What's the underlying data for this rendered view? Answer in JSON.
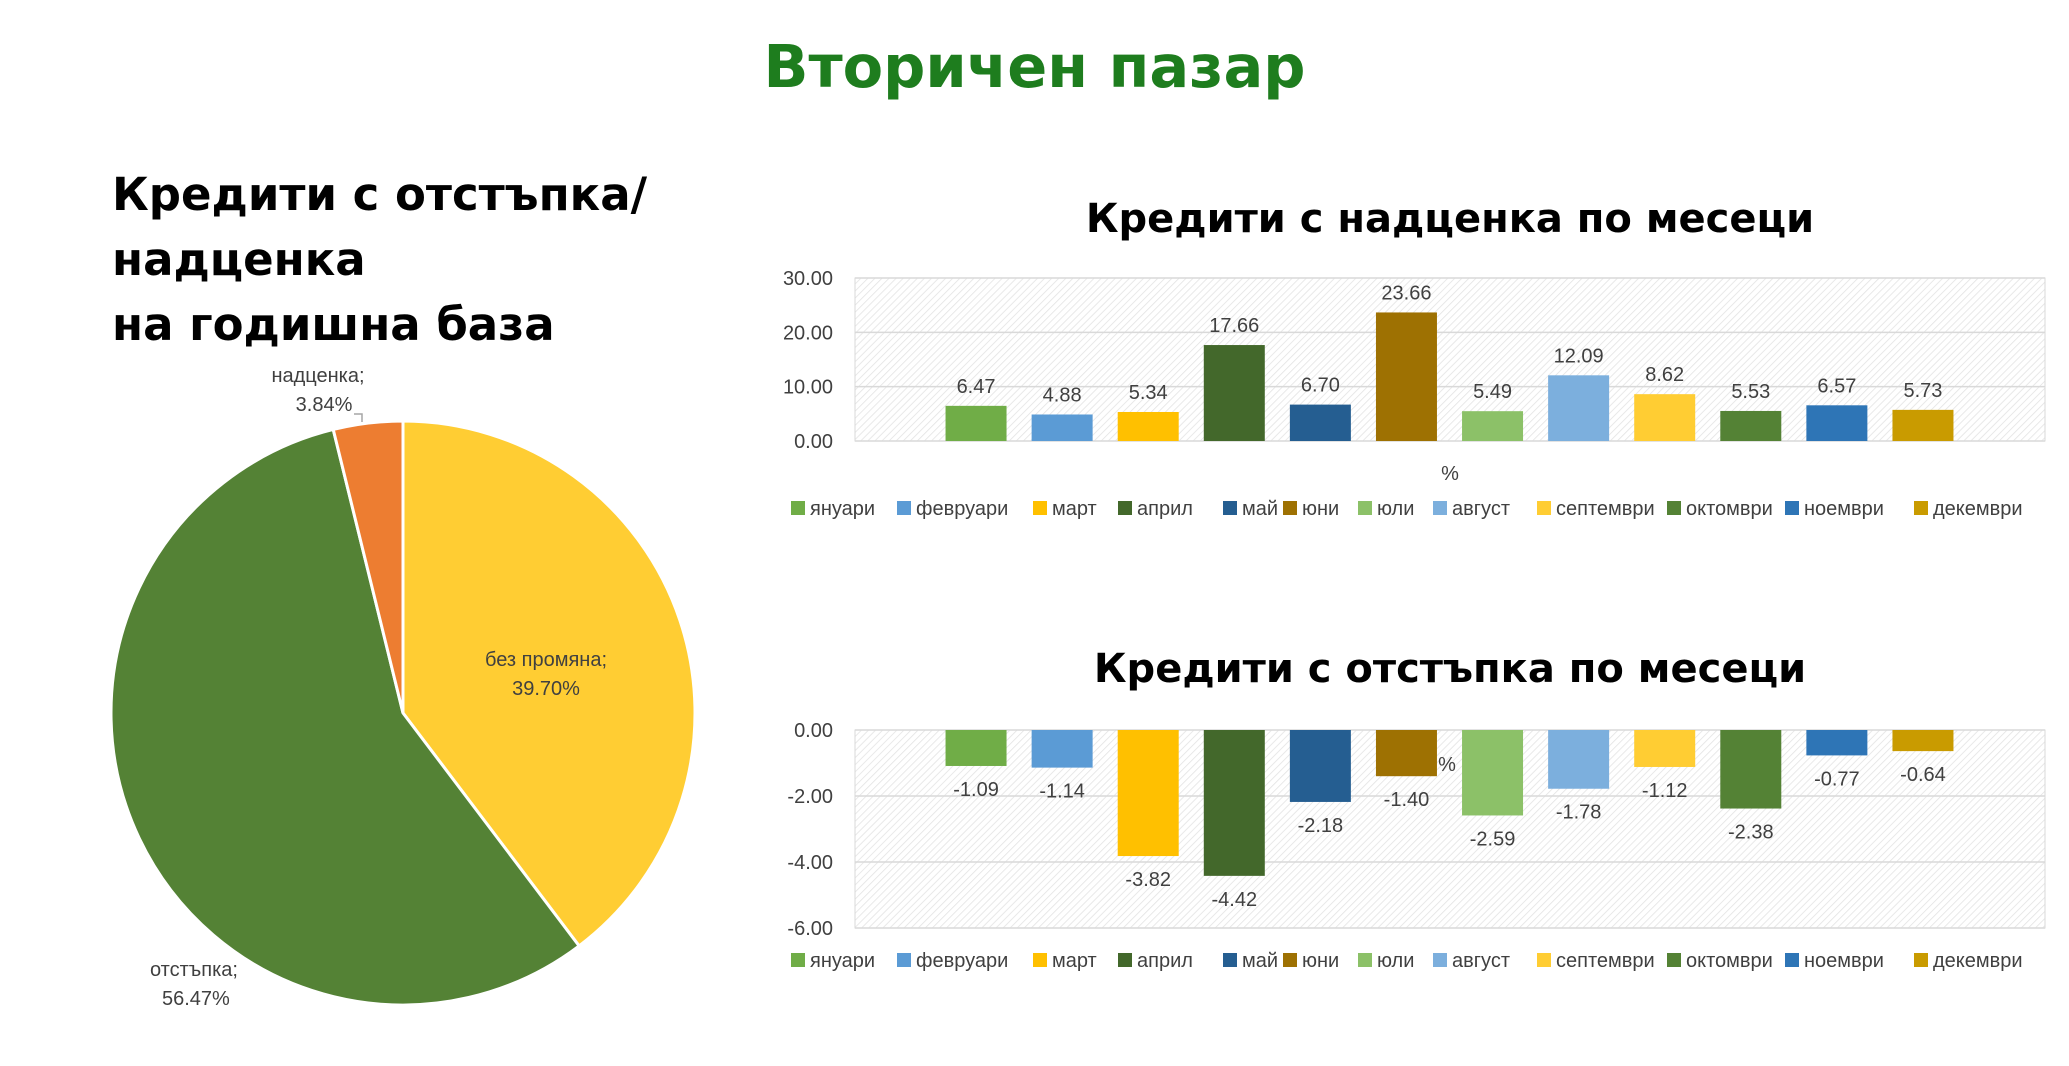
{
  "page_title": "Вторичен пазар",
  "colors": {
    "title_green": "#1e7d1e",
    "january": "#70ad47",
    "february": "#5b9bd5",
    "march": "#ffc000",
    "april": "#43682b",
    "may": "#255e91",
    "june": "#9e7102",
    "july": "#8cc168",
    "august": "#7cafdd",
    "september": "#ffcd33",
    "october": "#548235",
    "november": "#2e75b6",
    "december": "#c99b00",
    "pie_no_change": "#ffcd33",
    "pie_discount": "#548235",
    "pie_premium": "#ed7d31"
  },
  "chart_data": [
    {
      "type": "pie",
      "title": "Кредити с отстъпка/надценка на годишна база",
      "title_lines": [
        "Кредити с отстъпка/надценка",
        "на годишна база"
      ],
      "slices": [
        {
          "label": "без промяна",
          "value": 39.7,
          "display": "39.70%",
          "color": "#ffcd33"
        },
        {
          "label": "отстъпка",
          "value": 56.47,
          "display": "56.47%",
          "color": "#548235"
        },
        {
          "label": "надценка",
          "value": 3.84,
          "display": "3.84%",
          "color": "#ed7d31"
        }
      ]
    },
    {
      "type": "bar",
      "title": "Кредити с надценка по месеци",
      "xlabel": "%",
      "ylim": [
        0,
        30
      ],
      "yticks": [
        0,
        10,
        20,
        30
      ],
      "ytick_labels": [
        "0.00",
        "10.00",
        "20.00",
        "30.00"
      ],
      "grid": true,
      "legend": "bottom",
      "series": [
        {
          "name": "януари",
          "value": 6.47,
          "label": "6.47"
        },
        {
          "name": "февруари",
          "value": 4.88,
          "label": "4.88"
        },
        {
          "name": "март",
          "value": 5.34,
          "label": "5.34"
        },
        {
          "name": "април",
          "value": 17.66,
          "label": "17.66"
        },
        {
          "name": "май",
          "value": 6.7,
          "label": "6.70"
        },
        {
          "name": "юни",
          "value": 23.66,
          "label": "23.66"
        },
        {
          "name": "юли",
          "value": 5.49,
          "label": "5.49"
        },
        {
          "name": "август",
          "value": 12.09,
          "label": "12.09"
        },
        {
          "name": "септември",
          "value": 8.62,
          "label": "8.62"
        },
        {
          "name": "октомври",
          "value": 5.53,
          "label": "5.53"
        },
        {
          "name": "ноември",
          "value": 6.57,
          "label": "6.57"
        },
        {
          "name": "декември",
          "value": 5.73,
          "label": "5.73"
        }
      ]
    },
    {
      "type": "bar",
      "title": "Кредити с отстъпка по месеци",
      "xlabel": "%",
      "ylim": [
        -6,
        0
      ],
      "yticks": [
        0,
        -2,
        -4,
        -6
      ],
      "ytick_labels": [
        "0.00",
        "-2.00",
        "-4.00",
        "-6.00"
      ],
      "grid": true,
      "legend": "bottom",
      "series": [
        {
          "name": "януари",
          "value": -1.09,
          "label": "-1.09"
        },
        {
          "name": "февруари",
          "value": -1.14,
          "label": "-1.14"
        },
        {
          "name": "март",
          "value": -3.82,
          "label": "-3.82"
        },
        {
          "name": "април",
          "value": -4.42,
          "label": "-4.42"
        },
        {
          "name": "май",
          "value": -2.18,
          "label": "-2.18"
        },
        {
          "name": "юни",
          "value": -1.4,
          "label": "-1.40"
        },
        {
          "name": "юли",
          "value": -2.59,
          "label": "-2.59"
        },
        {
          "name": "август",
          "value": -1.78,
          "label": "-1.78"
        },
        {
          "name": "септември",
          "value": -1.12,
          "label": "-1.12"
        },
        {
          "name": "октомври",
          "value": -2.38,
          "label": "-2.38"
        },
        {
          "name": "ноември",
          "value": -0.77,
          "label": "-0.77"
        },
        {
          "name": "декември",
          "value": -0.64,
          "label": "-0.64"
        }
      ]
    }
  ]
}
